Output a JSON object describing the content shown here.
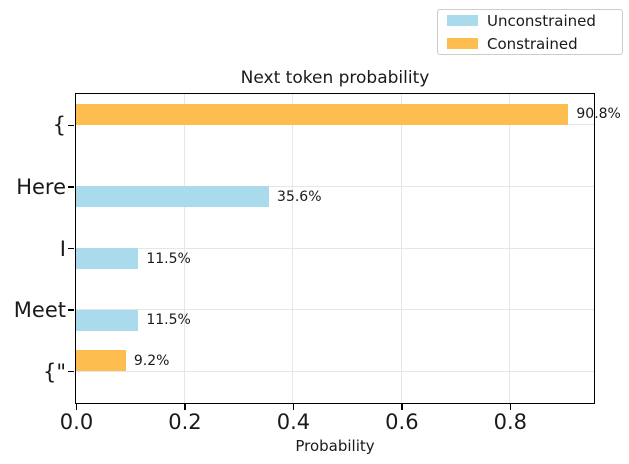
{
  "legend": {
    "items": [
      {
        "label": "Unconstrained",
        "color": "#A9DBEC"
      },
      {
        "label": "Constrained",
        "color": "#FDBE4F"
      }
    ]
  },
  "chart_data": {
    "type": "bar",
    "orientation": "horizontal",
    "title": "Next token probability",
    "xlabel": "Probability",
    "ylabel": "",
    "categories": [
      "{",
      "Here",
      "I",
      "Meet",
      "{\""
    ],
    "series": [
      {
        "name": "Unconstrained",
        "color": "#A9DBEC",
        "values": [
          0,
          0.356,
          0.115,
          0.115,
          0
        ]
      },
      {
        "name": "Constrained",
        "color": "#FDBE4F",
        "values": [
          0.908,
          0,
          0,
          0,
          0.092
        ]
      }
    ],
    "bar_value_labels": [
      [
        "",
        "35.6%",
        "11.5%",
        "11.5%",
        ""
      ],
      [
        "90.8%",
        "",
        "",
        "",
        "9.2%"
      ]
    ],
    "xlim": [
      0,
      0.9534
    ],
    "xticks": [
      {
        "value": 0.0,
        "label": "0.0"
      },
      {
        "value": 0.2,
        "label": "0.2"
      },
      {
        "value": 0.4,
        "label": "0.4"
      },
      {
        "value": 0.6,
        "label": "0.6"
      },
      {
        "value": 0.8,
        "label": "0.8"
      }
    ],
    "grid": true,
    "legend_position": "upper right"
  },
  "colors": {
    "spine": "#000000",
    "grid": "#e6e6e6",
    "text": "#1a1a1a",
    "legend_border": "#cccccc",
    "background": "#ffffff"
  }
}
